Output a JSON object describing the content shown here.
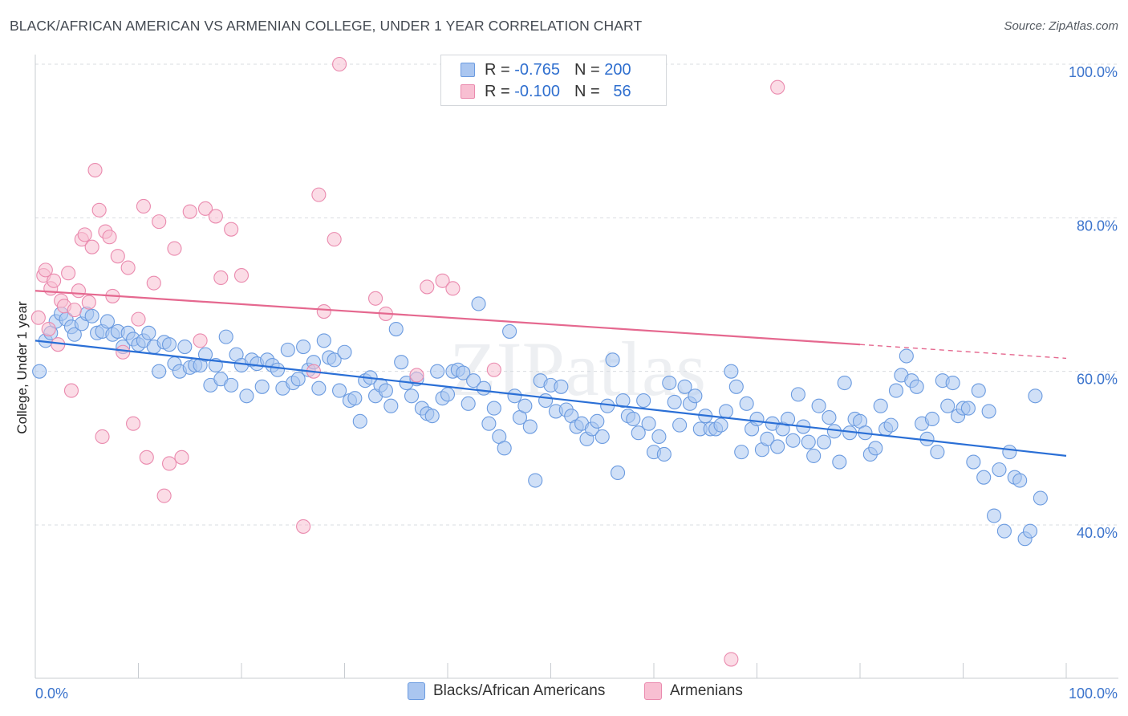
{
  "title": "BLACK/AFRICAN AMERICAN VS ARMENIAN COLLEGE, UNDER 1 YEAR CORRELATION CHART",
  "source": "Source: ZipAtlas.com",
  "watermark": "ZIPatlas",
  "legend": {
    "rows": [
      {
        "r_label": "R = ",
        "r_value": "-0.765",
        "n_label": "N = ",
        "n_value": "200",
        "color": "#aac6f0",
        "border": "#6b9be0"
      },
      {
        "r_label": "R = ",
        "r_value": "-0.100",
        "n_label": "N = ",
        "n_value": "  56",
        "color": "#f8bfd2",
        "border": "#ea8aae"
      }
    ]
  },
  "bottom_legend": [
    {
      "label": "Blacks/African Americans",
      "color": "#aac6f0",
      "border": "#6b9be0"
    },
    {
      "label": "Armenians",
      "color": "#f8bfd2",
      "border": "#ea8aae"
    }
  ],
  "chart_data": {
    "type": "scatter",
    "title": "BLACK/AFRICAN AMERICAN VS ARMENIAN COLLEGE, UNDER 1 YEAR CORRELATION CHART",
    "xlabel": "",
    "ylabel": "College, Under 1 year",
    "xlim": [
      0,
      100
    ],
    "ylim": [
      20,
      102
    ],
    "x_ticks": [
      {
        "value": 0,
        "label": "0.0%"
      },
      {
        "value": 100,
        "label": "100.0%"
      }
    ],
    "y_ticks": [
      {
        "value": 40,
        "label": "40.0%"
      },
      {
        "value": 60,
        "label": "60.0%"
      },
      {
        "value": 80,
        "label": "80.0%"
      },
      {
        "value": 100,
        "label": "100.0%"
      }
    ],
    "grid": true,
    "legend_position": "top-center",
    "series": [
      {
        "name": "Blacks/African Americans",
        "color": "#aac6f0",
        "stroke": "#6b9be0",
        "line_color": "#2a6fd6",
        "trend": {
          "x": [
            0,
            100
          ],
          "y": [
            64.0,
            49.0
          ]
        },
        "points": [
          [
            0.4,
            60.0
          ],
          [
            1.0,
            64.0
          ],
          [
            1.5,
            65.0
          ],
          [
            2.0,
            66.5
          ],
          [
            2.5,
            67.5
          ],
          [
            3.0,
            66.8
          ],
          [
            3.5,
            65.8
          ],
          [
            3.8,
            64.8
          ],
          [
            4.5,
            66.2
          ],
          [
            5.0,
            67.5
          ],
          [
            5.5,
            67.2
          ],
          [
            6.0,
            65.0
          ],
          [
            6.5,
            65.2
          ],
          [
            7.0,
            66.5
          ],
          [
            7.5,
            64.8
          ],
          [
            8.0,
            65.2
          ],
          [
            8.5,
            63.2
          ],
          [
            9.0,
            65.0
          ],
          [
            9.5,
            64.2
          ],
          [
            10.0,
            63.5
          ],
          [
            10.5,
            64.0
          ],
          [
            11.0,
            65.0
          ],
          [
            11.5,
            63.2
          ],
          [
            12.0,
            60.0
          ],
          [
            12.5,
            63.8
          ],
          [
            13.0,
            63.5
          ],
          [
            13.5,
            61.0
          ],
          [
            14.0,
            60.0
          ],
          [
            14.5,
            63.2
          ],
          [
            15.0,
            60.5
          ],
          [
            15.5,
            60.8
          ],
          [
            16.0,
            60.8
          ],
          [
            16.5,
            62.2
          ],
          [
            17.0,
            58.2
          ],
          [
            17.5,
            60.8
          ],
          [
            18.0,
            59.0
          ],
          [
            18.5,
            64.5
          ],
          [
            19.0,
            58.2
          ],
          [
            19.5,
            62.2
          ],
          [
            20.0,
            60.8
          ],
          [
            20.5,
            56.8
          ],
          [
            21.0,
            61.5
          ],
          [
            21.5,
            61.0
          ],
          [
            22.0,
            58.0
          ],
          [
            22.5,
            61.5
          ],
          [
            23.0,
            60.8
          ],
          [
            23.5,
            60.2
          ],
          [
            24.0,
            57.8
          ],
          [
            24.5,
            62.8
          ],
          [
            25.0,
            58.5
          ],
          [
            25.5,
            59.0
          ],
          [
            26.0,
            63.2
          ],
          [
            26.5,
            60.2
          ],
          [
            27.0,
            61.2
          ],
          [
            27.5,
            57.8
          ],
          [
            28.0,
            64.0
          ],
          [
            28.5,
            61.8
          ],
          [
            29.0,
            61.5
          ],
          [
            29.5,
            57.5
          ],
          [
            30.0,
            62.5
          ],
          [
            30.5,
            56.2
          ],
          [
            31.0,
            56.5
          ],
          [
            31.5,
            53.5
          ],
          [
            32.0,
            58.8
          ],
          [
            32.5,
            59.2
          ],
          [
            33.0,
            56.8
          ],
          [
            33.5,
            58.2
          ],
          [
            34.0,
            57.5
          ],
          [
            34.5,
            55.5
          ],
          [
            35.0,
            65.5
          ],
          [
            35.5,
            61.2
          ],
          [
            36.0,
            58.5
          ],
          [
            36.5,
            56.8
          ],
          [
            37.0,
            59.0
          ],
          [
            37.5,
            55.2
          ],
          [
            38.0,
            54.5
          ],
          [
            38.5,
            54.2
          ],
          [
            39.0,
            60.0
          ],
          [
            39.5,
            56.5
          ],
          [
            40.0,
            57.0
          ],
          [
            40.5,
            60.0
          ],
          [
            41.0,
            60.2
          ],
          [
            41.5,
            59.8
          ],
          [
            42.0,
            55.8
          ],
          [
            42.5,
            58.8
          ],
          [
            43.0,
            68.8
          ],
          [
            43.5,
            57.8
          ],
          [
            44.0,
            53.2
          ],
          [
            44.5,
            55.2
          ],
          [
            45.0,
            51.5
          ],
          [
            45.5,
            50.0
          ],
          [
            46.0,
            65.2
          ],
          [
            46.5,
            56.8
          ],
          [
            47.0,
            54.0
          ],
          [
            47.5,
            55.5
          ],
          [
            48.0,
            52.8
          ],
          [
            48.5,
            45.8
          ],
          [
            49.0,
            58.8
          ],
          [
            49.5,
            56.2
          ],
          [
            50.0,
            58.2
          ],
          [
            50.5,
            54.8
          ],
          [
            51.0,
            58.0
          ],
          [
            51.5,
            55.0
          ],
          [
            52.0,
            54.2
          ],
          [
            52.5,
            52.8
          ],
          [
            53.0,
            53.2
          ],
          [
            53.5,
            51.2
          ],
          [
            54.0,
            52.5
          ],
          [
            54.5,
            53.5
          ],
          [
            55.0,
            51.5
          ],
          [
            55.5,
            55.5
          ],
          [
            56.0,
            61.5
          ],
          [
            56.5,
            46.8
          ],
          [
            57.0,
            56.2
          ],
          [
            57.5,
            54.2
          ],
          [
            58.0,
            53.8
          ],
          [
            58.5,
            52.0
          ],
          [
            59.0,
            56.2
          ],
          [
            59.5,
            53.2
          ],
          [
            60.0,
            49.5
          ],
          [
            60.5,
            51.5
          ],
          [
            61.0,
            49.2
          ],
          [
            61.5,
            58.5
          ],
          [
            62.0,
            56.0
          ],
          [
            62.5,
            53.0
          ],
          [
            63.0,
            58.0
          ],
          [
            63.5,
            55.8
          ],
          [
            64.0,
            56.8
          ],
          [
            64.5,
            52.5
          ],
          [
            65.0,
            54.2
          ],
          [
            65.5,
            52.5
          ],
          [
            66.0,
            52.5
          ],
          [
            66.5,
            53.0
          ],
          [
            67.0,
            54.8
          ],
          [
            67.5,
            60.0
          ],
          [
            68.0,
            58.0
          ],
          [
            68.5,
            49.5
          ],
          [
            69.0,
            55.8
          ],
          [
            69.5,
            52.5
          ],
          [
            70.0,
            53.8
          ],
          [
            70.5,
            49.8
          ],
          [
            71.0,
            51.2
          ],
          [
            71.5,
            53.2
          ],
          [
            72.0,
            50.2
          ],
          [
            72.5,
            52.5
          ],
          [
            73.0,
            53.8
          ],
          [
            73.5,
            51.0
          ],
          [
            74.0,
            57.0
          ],
          [
            74.5,
            52.8
          ],
          [
            75.0,
            50.8
          ],
          [
            75.5,
            49.0
          ],
          [
            76.0,
            55.5
          ],
          [
            76.5,
            50.8
          ],
          [
            77.0,
            54.0
          ],
          [
            77.5,
            52.2
          ],
          [
            78.0,
            48.2
          ],
          [
            78.5,
            58.5
          ],
          [
            79.0,
            52.0
          ],
          [
            79.5,
            53.8
          ],
          [
            80.0,
            53.5
          ],
          [
            80.5,
            52.0
          ],
          [
            81.0,
            49.2
          ],
          [
            81.5,
            50.0
          ],
          [
            82.0,
            55.5
          ],
          [
            82.5,
            52.5
          ],
          [
            83.0,
            53.0
          ],
          [
            83.5,
            57.5
          ],
          [
            84.0,
            59.5
          ],
          [
            84.5,
            62.0
          ],
          [
            85.0,
            58.8
          ],
          [
            85.5,
            58.0
          ],
          [
            86.0,
            53.2
          ],
          [
            86.5,
            51.2
          ],
          [
            87.0,
            53.8
          ],
          [
            87.5,
            49.5
          ],
          [
            88.0,
            58.8
          ],
          [
            88.5,
            55.5
          ],
          [
            89.0,
            58.5
          ],
          [
            89.5,
            54.2
          ],
          [
            90.0,
            55.2
          ],
          [
            90.5,
            55.2
          ],
          [
            91.0,
            48.2
          ],
          [
            91.5,
            57.5
          ],
          [
            92.0,
            46.2
          ],
          [
            92.5,
            54.8
          ],
          [
            93.0,
            41.2
          ],
          [
            93.5,
            47.2
          ],
          [
            94.0,
            39.2
          ],
          [
            94.5,
            49.5
          ],
          [
            95.0,
            46.2
          ],
          [
            95.5,
            45.8
          ],
          [
            96.0,
            38.2
          ],
          [
            96.5,
            39.2
          ],
          [
            97.0,
            56.8
          ],
          [
            97.5,
            43.5
          ]
        ]
      },
      {
        "name": "Armenians",
        "color": "#f8bfd2",
        "stroke": "#ea8aae",
        "line_color": "#e5688f",
        "trend": {
          "x": [
            0,
            80
          ],
          "y": [
            70.5,
            63.5
          ]
        },
        "trend_dashed": {
          "x": [
            80,
            100
          ],
          "y": [
            63.5,
            61.7
          ]
        },
        "points": [
          [
            0.3,
            67.0
          ],
          [
            0.8,
            72.5
          ],
          [
            1.0,
            73.2
          ],
          [
            1.3,
            65.5
          ],
          [
            1.5,
            70.8
          ],
          [
            1.8,
            71.8
          ],
          [
            2.2,
            63.5
          ],
          [
            2.5,
            69.2
          ],
          [
            2.8,
            68.5
          ],
          [
            3.2,
            72.8
          ],
          [
            3.5,
            57.5
          ],
          [
            3.8,
            68.0
          ],
          [
            4.2,
            70.5
          ],
          [
            4.5,
            77.2
          ],
          [
            4.8,
            77.8
          ],
          [
            5.2,
            69.0
          ],
          [
            5.5,
            76.2
          ],
          [
            5.8,
            86.2
          ],
          [
            6.2,
            81.0
          ],
          [
            6.5,
            51.5
          ],
          [
            6.8,
            78.2
          ],
          [
            7.2,
            77.5
          ],
          [
            7.5,
            69.8
          ],
          [
            8.0,
            75.0
          ],
          [
            8.5,
            62.5
          ],
          [
            9.0,
            73.5
          ],
          [
            9.5,
            53.2
          ],
          [
            10.0,
            66.8
          ],
          [
            10.5,
            81.5
          ],
          [
            10.8,
            48.8
          ],
          [
            11.5,
            71.5
          ],
          [
            12.0,
            79.5
          ],
          [
            12.5,
            43.8
          ],
          [
            13.0,
            48.0
          ],
          [
            13.5,
            76.0
          ],
          [
            14.2,
            48.8
          ],
          [
            15.0,
            80.8
          ],
          [
            16.0,
            64.0
          ],
          [
            16.5,
            81.2
          ],
          [
            17.5,
            80.2
          ],
          [
            18.0,
            72.2
          ],
          [
            19.0,
            78.5
          ],
          [
            20.0,
            72.5
          ],
          [
            26.0,
            39.8
          ],
          [
            27.0,
            60.0
          ],
          [
            27.5,
            83.0
          ],
          [
            28.0,
            67.8
          ],
          [
            29.0,
            77.2
          ],
          [
            29.5,
            100.0
          ],
          [
            33.0,
            69.5
          ],
          [
            34.0,
            67.5
          ],
          [
            37.0,
            59.5
          ],
          [
            38.0,
            71.0
          ],
          [
            39.5,
            71.8
          ],
          [
            40.5,
            70.8
          ],
          [
            44.5,
            60.2
          ],
          [
            67.5,
            22.5
          ],
          [
            72.0,
            97.0
          ]
        ]
      }
    ]
  }
}
